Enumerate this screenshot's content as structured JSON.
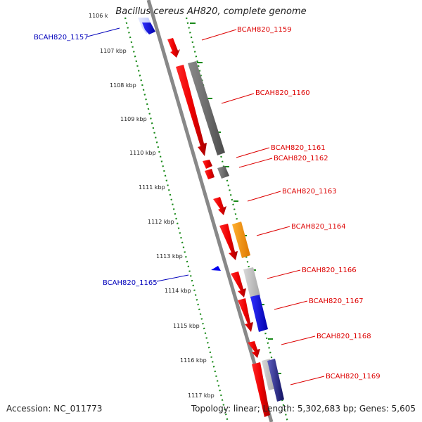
{
  "title": "Bacillus cereus AH820, complete genome",
  "footer": {
    "accession": "Accession: NC_011773",
    "summary": "Topology: linear; Length: 5,302,683 bp; Genes: 5,605"
  },
  "colors": {
    "forward_label": "#dd0000",
    "reverse_label": "#0000bb",
    "tick": "#1a8a1a",
    "backbone": "#888888"
  },
  "ticks": [
    "1106 k",
    "1107 kbp",
    "1108 kbp",
    "1109 kbp",
    "1110 kbp",
    "1111 kbp",
    "1112 kbp",
    "1113 kbp",
    "1114 kbp",
    "1115 kbp",
    "1116 kbp",
    "1117 kbp"
  ],
  "gene_labels": [
    {
      "id": "lbl-1157",
      "text": "BCAH820_1157",
      "color": "#0000bb"
    },
    {
      "id": "lbl-1159",
      "text": "BCAH820_1159",
      "color": "#dd0000"
    },
    {
      "id": "lbl-1160",
      "text": "BCAH820_1160",
      "color": "#dd0000"
    },
    {
      "id": "lbl-1161",
      "text": "BCAH820_1161",
      "color": "#dd0000"
    },
    {
      "id": "lbl-1162",
      "text": "BCAH820_1162",
      "color": "#dd0000"
    },
    {
      "id": "lbl-1163",
      "text": "BCAH820_1163",
      "color": "#dd0000"
    },
    {
      "id": "lbl-1164",
      "text": "BCAH820_1164",
      "color": "#dd0000"
    },
    {
      "id": "lbl-1165",
      "text": "BCAH820_1165",
      "color": "#0000bb"
    },
    {
      "id": "lbl-1166",
      "text": "BCAH820_1166",
      "color": "#dd0000"
    },
    {
      "id": "lbl-1167",
      "text": "BCAH820_1167",
      "color": "#dd0000"
    },
    {
      "id": "lbl-1168",
      "text": "BCAH820_1168",
      "color": "#dd0000"
    },
    {
      "id": "lbl-1169",
      "text": "BCAH820_1169",
      "color": "#dd0000"
    }
  ]
}
